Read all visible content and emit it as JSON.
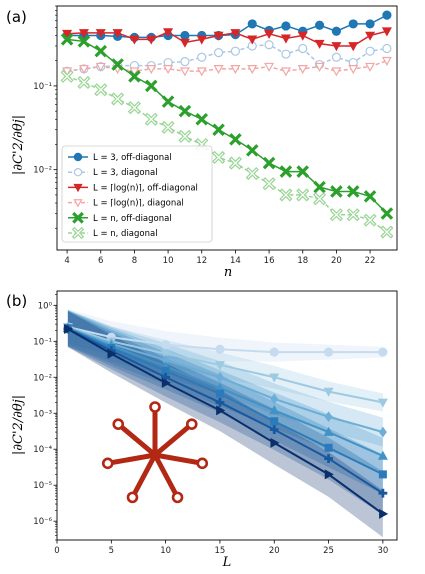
{
  "chart_data": [
    {
      "panel_label": "(a)",
      "type": "line",
      "xlabel": "n",
      "ylabel": "|∂C'2/∂θj|",
      "yscale": "log",
      "xlim": [
        3.4,
        23.6
      ],
      "ylim": [
        0.0011,
        0.9
      ],
      "xticks": [
        4,
        6,
        8,
        10,
        12,
        14,
        16,
        18,
        20,
        22
      ],
      "yticks": [
        {
          "v": 0.01,
          "label": "10⁻²"
        },
        {
          "v": 0.1,
          "label": "10⁻¹"
        }
      ],
      "legend_position": "lower-left",
      "series": [
        {
          "name": "L = 3, off-diagonal",
          "color": "#1f77b4",
          "marker": "circle",
          "filled": true,
          "dashed": false,
          "x": [
            4,
            5,
            6,
            7,
            8,
            9,
            10,
            11,
            12,
            13,
            14,
            15,
            16,
            17,
            18,
            19,
            20,
            21,
            22,
            23
          ],
          "values": [
            0.4,
            0.4,
            0.4,
            0.39,
            0.38,
            0.38,
            0.4,
            0.4,
            0.4,
            0.4,
            0.41,
            0.55,
            0.46,
            0.52,
            0.45,
            0.53,
            0.45,
            0.55,
            0.55,
            0.7
          ]
        },
        {
          "name": "L = 3, diagonal",
          "color": "#aac7e6",
          "marker": "circle",
          "filled": false,
          "dashed": true,
          "x": [
            4,
            5,
            6,
            7,
            8,
            9,
            10,
            11,
            12,
            13,
            14,
            15,
            16,
            17,
            18,
            19,
            20,
            21,
            22,
            23
          ],
          "values": [
            0.15,
            0.16,
            0.17,
            0.175,
            0.175,
            0.175,
            0.19,
            0.195,
            0.22,
            0.25,
            0.26,
            0.3,
            0.31,
            0.24,
            0.28,
            0.18,
            0.22,
            0.19,
            0.26,
            0.28
          ]
        },
        {
          "name": "L = ⌈log(n)⌉, off-diagonal",
          "color": "#d62728",
          "marker": "triangle-down",
          "filled": true,
          "dashed": false,
          "x": [
            4,
            5,
            6,
            7,
            8,
            9,
            10,
            11,
            12,
            13,
            14,
            15,
            16,
            17,
            18,
            19,
            20,
            21,
            22,
            23
          ],
          "values": [
            0.42,
            0.43,
            0.43,
            0.43,
            0.36,
            0.36,
            0.44,
            0.33,
            0.36,
            0.4,
            0.43,
            0.36,
            0.42,
            0.37,
            0.4,
            0.32,
            0.3,
            0.3,
            0.4,
            0.45
          ]
        },
        {
          "name": "L = ⌈log(n)⌉, diagonal",
          "color": "#f2a6a6",
          "marker": "triangle-down",
          "filled": false,
          "dashed": true,
          "x": [
            4,
            5,
            6,
            7,
            8,
            9,
            10,
            11,
            12,
            13,
            14,
            15,
            16,
            17,
            18,
            19,
            20,
            21,
            22,
            23
          ],
          "values": [
            0.15,
            0.16,
            0.17,
            0.16,
            0.15,
            0.16,
            0.16,
            0.15,
            0.15,
            0.16,
            0.16,
            0.16,
            0.17,
            0.15,
            0.16,
            0.17,
            0.15,
            0.16,
            0.17,
            0.2
          ]
        },
        {
          "name": "L = n, off-diagonal",
          "color": "#2ca02c",
          "marker": "x",
          "filled": true,
          "dashed": false,
          "x": [
            4,
            5,
            6,
            7,
            8,
            9,
            10,
            11,
            12,
            13,
            14,
            15,
            16,
            17,
            18,
            19,
            20,
            21,
            22,
            23
          ],
          "values": [
            0.36,
            0.34,
            0.26,
            0.18,
            0.13,
            0.1,
            0.065,
            0.05,
            0.04,
            0.03,
            0.023,
            0.017,
            0.012,
            0.0095,
            0.0095,
            0.0062,
            0.0055,
            0.0055,
            0.0048,
            0.003
          ]
        },
        {
          "name": "L = n, diagonal",
          "color": "#98d594",
          "marker": "x",
          "filled": false,
          "dashed": true,
          "x": [
            4,
            5,
            6,
            7,
            8,
            9,
            10,
            11,
            12,
            13,
            14,
            15,
            16,
            17,
            18,
            19,
            20,
            21,
            22,
            23
          ],
          "values": [
            0.13,
            0.11,
            0.09,
            0.07,
            0.055,
            0.04,
            0.032,
            0.025,
            0.02,
            0.014,
            0.012,
            0.009,
            0.0068,
            0.005,
            0.005,
            0.0045,
            0.0029,
            0.0029,
            0.0025,
            0.0018
          ]
        }
      ]
    },
    {
      "panel_label": "(b)",
      "type": "line",
      "xlabel": "L",
      "ylabel": "|∂C'2/∂θj|",
      "yscale": "log",
      "xlim": [
        0,
        31.3
      ],
      "ylim": [
        3e-07,
        2.5
      ],
      "xticks": [
        0,
        5,
        10,
        15,
        20,
        25,
        30
      ],
      "yticks": [
        {
          "v": 1,
          "label": "10⁰"
        },
        {
          "v": 0.1,
          "label": "10⁻¹"
        },
        {
          "v": 0.01,
          "label": "10⁻²"
        },
        {
          "v": 0.001,
          "label": "10⁻³"
        },
        {
          "v": 0.0001,
          "label": "10⁻⁴"
        },
        {
          "v": 1e-05,
          "label": "10⁻⁵"
        },
        {
          "v": 1e-06,
          "label": "10⁻⁶"
        }
      ],
      "x": [
        1,
        5,
        10,
        15,
        20,
        25,
        30
      ],
      "series": [
        {
          "color": "#c6dbef",
          "marker": "circle",
          "values": [
            0.25,
            0.13,
            0.08,
            0.06,
            0.05,
            0.05,
            0.05
          ],
          "band": [
            0.5,
            0.15
          ]
        },
        {
          "color": "#9ecae1",
          "marker": "triangle-down",
          "values": [
            0.25,
            0.1,
            0.045,
            0.022,
            0.01,
            0.004,
            0.002
          ],
          "band": [
            0.45,
            0.25
          ]
        },
        {
          "color": "#6baed6",
          "marker": "diamond",
          "values": [
            0.24,
            0.085,
            0.03,
            0.01,
            0.0025,
            0.0008,
            0.0003
          ],
          "band": [
            0.5,
            0.4
          ]
        },
        {
          "color": "#4292c6",
          "marker": "triangle-up",
          "values": [
            0.23,
            0.075,
            0.02,
            0.005,
            0.0012,
            0.0003,
            6.5e-05
          ],
          "band": [
            0.5,
            0.5
          ]
        },
        {
          "color": "#2b7bba",
          "marker": "square",
          "values": [
            0.23,
            0.065,
            0.015,
            0.0035,
            0.0006,
            0.00011,
            2e-05
          ],
          "band": [
            0.5,
            0.55
          ]
        },
        {
          "color": "#17599e",
          "marker": "plus",
          "values": [
            0.22,
            0.055,
            0.01,
            0.002,
            0.00035,
            5.5e-05,
            6e-06
          ],
          "band": [
            0.5,
            0.6
          ]
        },
        {
          "color": "#0b2f6b",
          "marker": "triangle-right",
          "values": [
            0.22,
            0.045,
            0.007,
            0.0012,
            0.00015,
            2e-05,
            1.6e-06
          ],
          "band": [
            0.5,
            0.65
          ]
        }
      ],
      "inset_graph": {
        "type": "star",
        "color": "#b22814",
        "spokes": 7
      }
    }
  ]
}
